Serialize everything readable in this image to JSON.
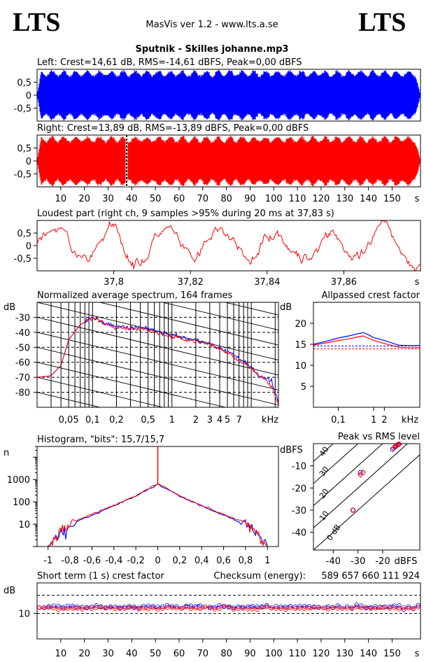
{
  "header": {
    "logo_left": "LTS",
    "logo_right": "LTS",
    "app_title": "MasVis ver 1.2 - www.lts.a.se",
    "file_title": "Sputnik - Skilles johanne.mp3"
  },
  "colors": {
    "left": "#0000ff",
    "right": "#ff0000",
    "grid": "#000000"
  },
  "chart_data": [
    {
      "id": "left-waveform",
      "type": "area",
      "title": "Left: Crest=14,61 dB, RMS=-14,61 dBFS, Peak=0,00 dBFS",
      "series": [
        {
          "name": "Left",
          "color": "#0000ff"
        }
      ],
      "y_ticks": [
        "0,5",
        "0",
        "-0,5"
      ],
      "y_tick_values": [
        0.5,
        0,
        -0.5
      ],
      "ylim": [
        -1,
        1
      ],
      "xlim": [
        0,
        162
      ],
      "crest_db": 14.61,
      "rms_dbfs": -14.61,
      "peak_dbfs": 0.0
    },
    {
      "id": "right-waveform",
      "type": "area",
      "title": "Right: Crest=13,89 dB, RMS=-13,89 dBFS, Peak=0,00 dBFS",
      "series": [
        {
          "name": "Right",
          "color": "#ff0000"
        }
      ],
      "y_ticks": [
        "0,5",
        "0",
        "-0,5"
      ],
      "y_tick_values": [
        0.5,
        0,
        -0.5
      ],
      "ylim": [
        -1,
        1
      ],
      "xlim": [
        0,
        162
      ],
      "marker_x": 37.83,
      "x_ticks": [
        "10",
        "20",
        "30",
        "40",
        "50",
        "60",
        "70",
        "80",
        "90",
        "100",
        "110",
        "120",
        "130",
        "140",
        "150"
      ],
      "x_tick_values": [
        10,
        20,
        30,
        40,
        50,
        60,
        70,
        80,
        90,
        100,
        110,
        120,
        130,
        140,
        150
      ],
      "x_unit": "s",
      "crest_db": 13.89,
      "rms_dbfs": -13.89,
      "peak_dbfs": 0.0
    },
    {
      "id": "loudest-part",
      "type": "line",
      "title": "Loudest part (right ch, 9 samples >95% during 20 ms at 37,83 s)",
      "series": [
        {
          "name": "Right",
          "color": "#ff0000"
        }
      ],
      "y_ticks": [
        "0,5",
        "0",
        "-0,5"
      ],
      "y_tick_values": [
        0.5,
        0,
        -0.5
      ],
      "ylim": [
        -1,
        1
      ],
      "xlim": [
        37.78,
        37.88
      ],
      "x_ticks": [
        "37,8",
        "37,82",
        "37,84",
        "37,86"
      ],
      "x_tick_values": [
        37.8,
        37.82,
        37.84,
        37.86
      ],
      "x_unit": "s"
    },
    {
      "id": "spectrum",
      "type": "line",
      "title": "Normalized average spectrum, 164 frames",
      "ylabel": "dB",
      "y_ticks": [
        "-30",
        "-40",
        "-50",
        "-60",
        "-70",
        "-80"
      ],
      "y_tick_values": [
        -30,
        -40,
        -50,
        -60,
        -70,
        -80
      ],
      "ylim": [
        -90,
        -20
      ],
      "x_scale": "log",
      "xlim": [
        0.02,
        22
      ],
      "x_ticks": [
        "0,05",
        "0,1",
        "0,2",
        "0,5",
        "1",
        "2",
        "3",
        "4",
        "5",
        "7"
      ],
      "x_tick_values": [
        0.05,
        0.1,
        0.2,
        0.5,
        1,
        2,
        3,
        4,
        5,
        7
      ],
      "x_unit": "kHz",
      "series": [
        {
          "name": "Left",
          "color": "#0000ff",
          "x": [
            0.02,
            0.03,
            0.04,
            0.05,
            0.07,
            0.1,
            0.15,
            0.2,
            0.3,
            0.5,
            0.7,
            1,
            1.5,
            2,
            3,
            4,
            5,
            7,
            10,
            12,
            15,
            18,
            22
          ],
          "y": [
            -70,
            -69,
            -62,
            -45,
            -35,
            -30,
            -35,
            -36,
            -37,
            -37,
            -40,
            -42,
            -44,
            -45,
            -48,
            -50,
            -53,
            -57,
            -63,
            -68,
            -70,
            -73,
            -87
          ]
        },
        {
          "name": "Right",
          "color": "#ff0000",
          "x": [
            0.02,
            0.03,
            0.04,
            0.05,
            0.07,
            0.1,
            0.15,
            0.2,
            0.3,
            0.5,
            0.7,
            1,
            1.5,
            2,
            3,
            4,
            5,
            7,
            10,
            12,
            15,
            18,
            22
          ],
          "y": [
            -70,
            -69,
            -62,
            -45,
            -35,
            -30,
            -35,
            -37,
            -38,
            -38,
            -41,
            -43,
            -45,
            -46,
            -48,
            -51,
            -54,
            -58,
            -64,
            -69,
            -72,
            -76,
            -88
          ]
        }
      ]
    },
    {
      "id": "allpassed-crest",
      "type": "line",
      "title": "Allpassed crest factor",
      "ylabel": "dB",
      "y_ticks": [
        "20",
        "15",
        "10",
        "5"
      ],
      "y_tick_values": [
        20,
        15,
        10,
        5
      ],
      "ylim": [
        0,
        25
      ],
      "x_scale": "log",
      "xlim": [
        0.02,
        20
      ],
      "x_ticks": [
        "0,1",
        "1",
        "2"
      ],
      "x_tick_values": [
        0.1,
        1,
        2
      ],
      "x_unit": "kHz",
      "reference_left_db": 14.61,
      "reference_right_db": 13.89,
      "series": [
        {
          "name": "Left",
          "color": "#0000ff",
          "x": [
            0.02,
            0.05,
            0.1,
            0.2,
            0.5,
            0.7,
            1,
            2,
            5,
            10,
            20
          ],
          "y": [
            15,
            15.8,
            16.5,
            17.0,
            17.8,
            17.3,
            16.6,
            15.9,
            14.8,
            14.7,
            14.7
          ]
        },
        {
          "name": "Right",
          "color": "#ff0000",
          "x": [
            0.02,
            0.05,
            0.1,
            0.2,
            0.5,
            0.7,
            1,
            2,
            5,
            10,
            20
          ],
          "y": [
            14.8,
            15.4,
            15.9,
            16.3,
            17.0,
            16.5,
            15.9,
            15.2,
            14.3,
            14.2,
            14.2
          ]
        }
      ]
    },
    {
      "id": "histogram",
      "type": "line",
      "title": "Histogram, \"bits\": 15,7/15,7",
      "ylabel": "n",
      "y_scale": "log",
      "y_ticks": [
        "1000",
        "100",
        "10"
      ],
      "y_tick_values": [
        1000,
        100,
        10
      ],
      "ylim": [
        1,
        30000
      ],
      "xlim": [
        -1.1,
        1.1
      ],
      "x_ticks": [
        "-1",
        "-0,8",
        "-0,6",
        "-0,4",
        "-0,2",
        "0",
        "0,2",
        "0,4",
        "0,6",
        "0,8",
        "1"
      ],
      "x_tick_values": [
        -1,
        -0.8,
        -0.6,
        -0.4,
        -0.2,
        0,
        0.2,
        0.4,
        0.6,
        0.8,
        1
      ],
      "bits_left": 15.7,
      "bits_right": 15.7,
      "series": [
        {
          "name": "Left",
          "color": "#0000ff",
          "x": [
            -1,
            -0.9,
            -0.8,
            -0.6,
            -0.4,
            -0.2,
            0,
            0.2,
            0.4,
            0.6,
            0.8,
            0.9,
            1
          ],
          "y": [
            1,
            4,
            10,
            25,
            65,
            180,
            600,
            180,
            65,
            25,
            10,
            4,
            1
          ]
        },
        {
          "name": "Right",
          "color": "#ff0000",
          "x": [
            -1,
            -0.9,
            -0.8,
            -0.6,
            -0.4,
            -0.2,
            0,
            0.2,
            0.4,
            0.6,
            0.8,
            0.9,
            1
          ],
          "y": [
            1,
            4,
            11,
            28,
            70,
            190,
            650,
            190,
            70,
            28,
            11,
            4,
            1
          ]
        }
      ]
    },
    {
      "id": "peak-vs-rms",
      "type": "scatter",
      "title": "Peak vs RMS level",
      "ylabel": "dBFS",
      "xlabel": "dBFS",
      "y_ticks": [
        "-10",
        "-20",
        "-30",
        "-40"
      ],
      "y_tick_values": [
        -10,
        -20,
        -30,
        -40
      ],
      "ylim": [
        -48,
        0
      ],
      "x_ticks": [
        "-40",
        "-30",
        "-20"
      ],
      "x_tick_values": [
        -40,
        -30,
        -20
      ],
      "xlim": [
        -48,
        -5
      ],
      "crest_lines": [
        "40",
        "30",
        "20",
        "10",
        "0 dB"
      ],
      "series": [
        {
          "name": "Left",
          "color": "#0000ff",
          "x": [
            -32,
            -29,
            -16,
            -15,
            -14.5,
            -14,
            -13.5
          ],
          "y": [
            -30,
            -13,
            -2.5,
            -1.5,
            -1,
            -0.5,
            -0.3
          ]
        },
        {
          "name": "Right",
          "color": "#ff0000",
          "x": [
            -32,
            -29,
            -28,
            -15.5,
            -15,
            -14,
            -13.3
          ],
          "y": [
            -30,
            -14,
            -13,
            -2,
            -1.2,
            -0.6,
            -0.2
          ]
        }
      ]
    },
    {
      "id": "short-term-crest",
      "type": "line",
      "title": "Short term (1 s) crest factor",
      "ylabel": "dB",
      "y_ticks": [
        "10"
      ],
      "y_tick_values": [
        10
      ],
      "ylim": [
        0,
        22
      ],
      "xlim": [
        0,
        162
      ],
      "x_ticks": [
        "10",
        "20",
        "30",
        "40",
        "50",
        "60",
        "70",
        "80",
        "90",
        "100",
        "110",
        "120",
        "130",
        "140",
        "150"
      ],
      "x_tick_values": [
        10,
        20,
        30,
        40,
        50,
        60,
        70,
        80,
        90,
        100,
        110,
        120,
        130,
        140,
        150
      ],
      "x_unit": "s",
      "reference_left_db": 14.61,
      "reference_right_db": 13.89,
      "series": [
        {
          "name": "Left",
          "color": "#0000ff",
          "mean": 12.6
        },
        {
          "name": "Right",
          "color": "#ff0000",
          "mean": 12.1
        }
      ]
    }
  ],
  "checksum": {
    "label": "Checksum (energy):",
    "value": "589 657 660 111 924"
  }
}
